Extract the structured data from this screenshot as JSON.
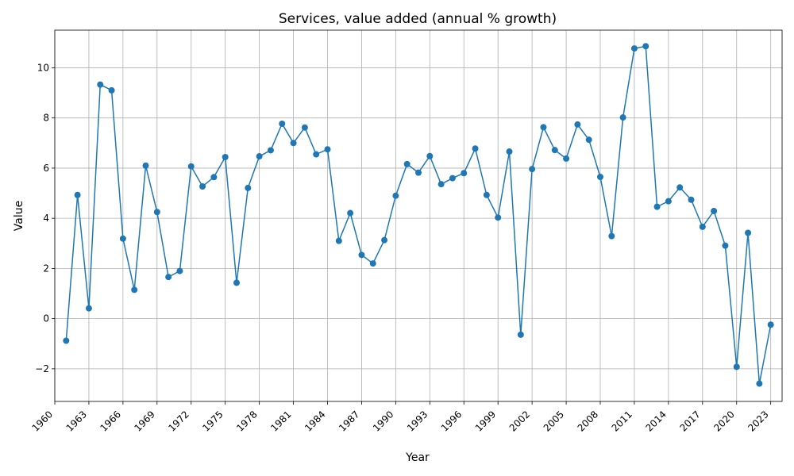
{
  "chart_data": {
    "type": "line",
    "title": "Services, value added (annual % growth)",
    "xlabel": "Year",
    "ylabel": "Value",
    "xlim": [
      1960,
      2024
    ],
    "ylim": [
      -3.3,
      11.5
    ],
    "x_ticks": [
      1960,
      1963,
      1966,
      1969,
      1972,
      1975,
      1978,
      1981,
      1984,
      1987,
      1990,
      1993,
      1996,
      1999,
      2002,
      2005,
      2008,
      2011,
      2014,
      2017,
      2020,
      2023
    ],
    "y_ticks": [
      -2,
      0,
      2,
      4,
      6,
      8,
      10
    ],
    "grid": true,
    "color": "#1f77b4",
    "marker": "circle",
    "series": [
      {
        "x": [
          1961,
          1962,
          1963,
          1964,
          1965,
          1966,
          1967,
          1968,
          1969,
          1970,
          1971,
          1972,
          1973,
          1974,
          1975,
          1976,
          1977,
          1978,
          1979,
          1980,
          1981,
          1982,
          1983,
          1984,
          1985,
          1986,
          1987,
          1988,
          1989,
          1990,
          1991,
          1992,
          1993,
          1994,
          1995,
          1996,
          1997,
          1998,
          1999,
          2000,
          2001,
          2002,
          2003,
          2004,
          2005,
          2006,
          2007,
          2008,
          2009,
          2010,
          2011,
          2012,
          2013,
          2014,
          2015,
          2016,
          2017,
          2018,
          2019,
          2020,
          2021,
          2022,
          2023
        ],
        "y": [
          -0.88,
          4.93,
          0.41,
          9.33,
          9.1,
          3.19,
          1.15,
          6.1,
          4.25,
          1.66,
          1.9,
          6.07,
          5.27,
          5.64,
          6.44,
          1.43,
          5.21,
          6.47,
          6.71,
          7.77,
          7.0,
          7.62,
          6.55,
          6.75,
          3.1,
          4.21,
          2.54,
          2.2,
          3.13,
          4.9,
          6.16,
          5.82,
          6.48,
          5.36,
          5.6,
          5.8,
          6.78,
          4.93,
          4.03,
          6.66,
          -0.64,
          5.96,
          7.63,
          6.72,
          6.38,
          7.74,
          7.13,
          5.65,
          3.29,
          8.02,
          10.77,
          10.86,
          4.46,
          4.68,
          5.23,
          4.74,
          3.66,
          4.29,
          2.91,
          -1.92,
          3.42,
          -2.59,
          -0.24
        ]
      }
    ]
  }
}
